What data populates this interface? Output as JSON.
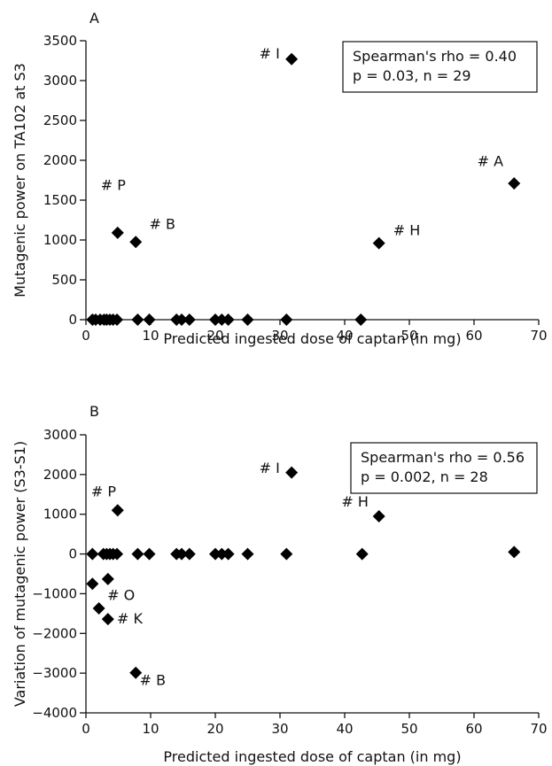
{
  "chart_data": [
    {
      "type": "scatter",
      "panel_label": "A",
      "xlabel": "Predicted ingested dose of captan (in mg)",
      "ylabel": "Mutagenic power on TA102 at S3",
      "xlim": [
        0,
        70
      ],
      "ylim": [
        0,
        3500
      ],
      "xticks": [
        0,
        10,
        20,
        30,
        40,
        50,
        60,
        70
      ],
      "yticks": [
        0,
        500,
        1000,
        1500,
        2000,
        2500,
        3000,
        3500
      ],
      "stats": [
        "Spearman's rho = 0.40",
        "p = 0.03, n = 29"
      ],
      "points": [
        {
          "x": 1,
          "y": 0
        },
        {
          "x": 1.5,
          "y": 0
        },
        {
          "x": 2.2,
          "y": 0
        },
        {
          "x": 2.8,
          "y": 0
        },
        {
          "x": 3.2,
          "y": 0
        },
        {
          "x": 3.7,
          "y": 0
        },
        {
          "x": 4.2,
          "y": 0
        },
        {
          "x": 4.8,
          "y": 0
        },
        {
          "x": 8,
          "y": 0
        },
        {
          "x": 9.8,
          "y": 0
        },
        {
          "x": 14,
          "y": 0
        },
        {
          "x": 14.8,
          "y": 0
        },
        {
          "x": 16,
          "y": 0
        },
        {
          "x": 20,
          "y": 0
        },
        {
          "x": 21,
          "y": 0
        },
        {
          "x": 22,
          "y": 0
        },
        {
          "x": 25,
          "y": 0
        },
        {
          "x": 31,
          "y": 0
        },
        {
          "x": 42.5,
          "y": 0
        },
        {
          "x": 4.9,
          "y": 1090
        },
        {
          "x": 7.7,
          "y": 975
        },
        {
          "x": 31.8,
          "y": 3270
        },
        {
          "x": 45.3,
          "y": 960
        },
        {
          "x": 66.2,
          "y": 1710
        }
      ],
      "annotations": [
        {
          "text": "# P",
          "x": 2.3,
          "y": 1630
        },
        {
          "text": "# B",
          "x": 9.8,
          "y": 1140
        },
        {
          "text": "# I",
          "x": 26.8,
          "y": 3280
        },
        {
          "text": "# H",
          "x": 47.5,
          "y": 1060
        },
        {
          "text": "# A",
          "x": 60.5,
          "y": 1930
        }
      ]
    },
    {
      "type": "scatter",
      "panel_label": "B",
      "xlabel": "Predicted ingested dose of captan (in mg)",
      "ylabel": "Variation of mutagenic power (S3-S1)",
      "xlim": [
        0,
        70
      ],
      "ylim": [
        -4000,
        3000
      ],
      "xticks": [
        0,
        10,
        20,
        30,
        40,
        50,
        60,
        70
      ],
      "yticks": [
        -4000,
        -3000,
        -2000,
        -1000,
        0,
        1000,
        2000,
        3000
      ],
      "stats": [
        "Spearman's rho = 0.56",
        "p = 0.002, n = 28"
      ],
      "points": [
        {
          "x": 1,
          "y": 0
        },
        {
          "x": 2.7,
          "y": 0
        },
        {
          "x": 3.2,
          "y": 0
        },
        {
          "x": 3.7,
          "y": 0
        },
        {
          "x": 4.2,
          "y": 0
        },
        {
          "x": 4.8,
          "y": 0
        },
        {
          "x": 8,
          "y": 0
        },
        {
          "x": 9.8,
          "y": 0
        },
        {
          "x": 14,
          "y": 0
        },
        {
          "x": 14.8,
          "y": 0
        },
        {
          "x": 16,
          "y": 0
        },
        {
          "x": 20,
          "y": 0
        },
        {
          "x": 21,
          "y": 0
        },
        {
          "x": 22,
          "y": 0
        },
        {
          "x": 25,
          "y": 0
        },
        {
          "x": 31,
          "y": 0
        },
        {
          "x": 42.7,
          "y": 0
        },
        {
          "x": 66.2,
          "y": 50
        },
        {
          "x": 4.9,
          "y": 1100
        },
        {
          "x": 31.8,
          "y": 2050
        },
        {
          "x": 45.3,
          "y": 950
        },
        {
          "x": 1,
          "y": -750
        },
        {
          "x": 3.4,
          "y": -630
        },
        {
          "x": 2,
          "y": -1370
        },
        {
          "x": 3.4,
          "y": -1640
        },
        {
          "x": 7.7,
          "y": -2990
        }
      ],
      "annotations": [
        {
          "text": "# P",
          "x": 0.8,
          "y": 1450
        },
        {
          "text": "# I",
          "x": 26.8,
          "y": 2040
        },
        {
          "text": "# H",
          "x": 39.5,
          "y": 1190
        },
        {
          "text": "# O",
          "x": 3.3,
          "y": -1160
        },
        {
          "text": "# K",
          "x": 4.8,
          "y": -1750
        },
        {
          "text": "# B",
          "x": 8.3,
          "y": -3300
        }
      ]
    }
  ]
}
